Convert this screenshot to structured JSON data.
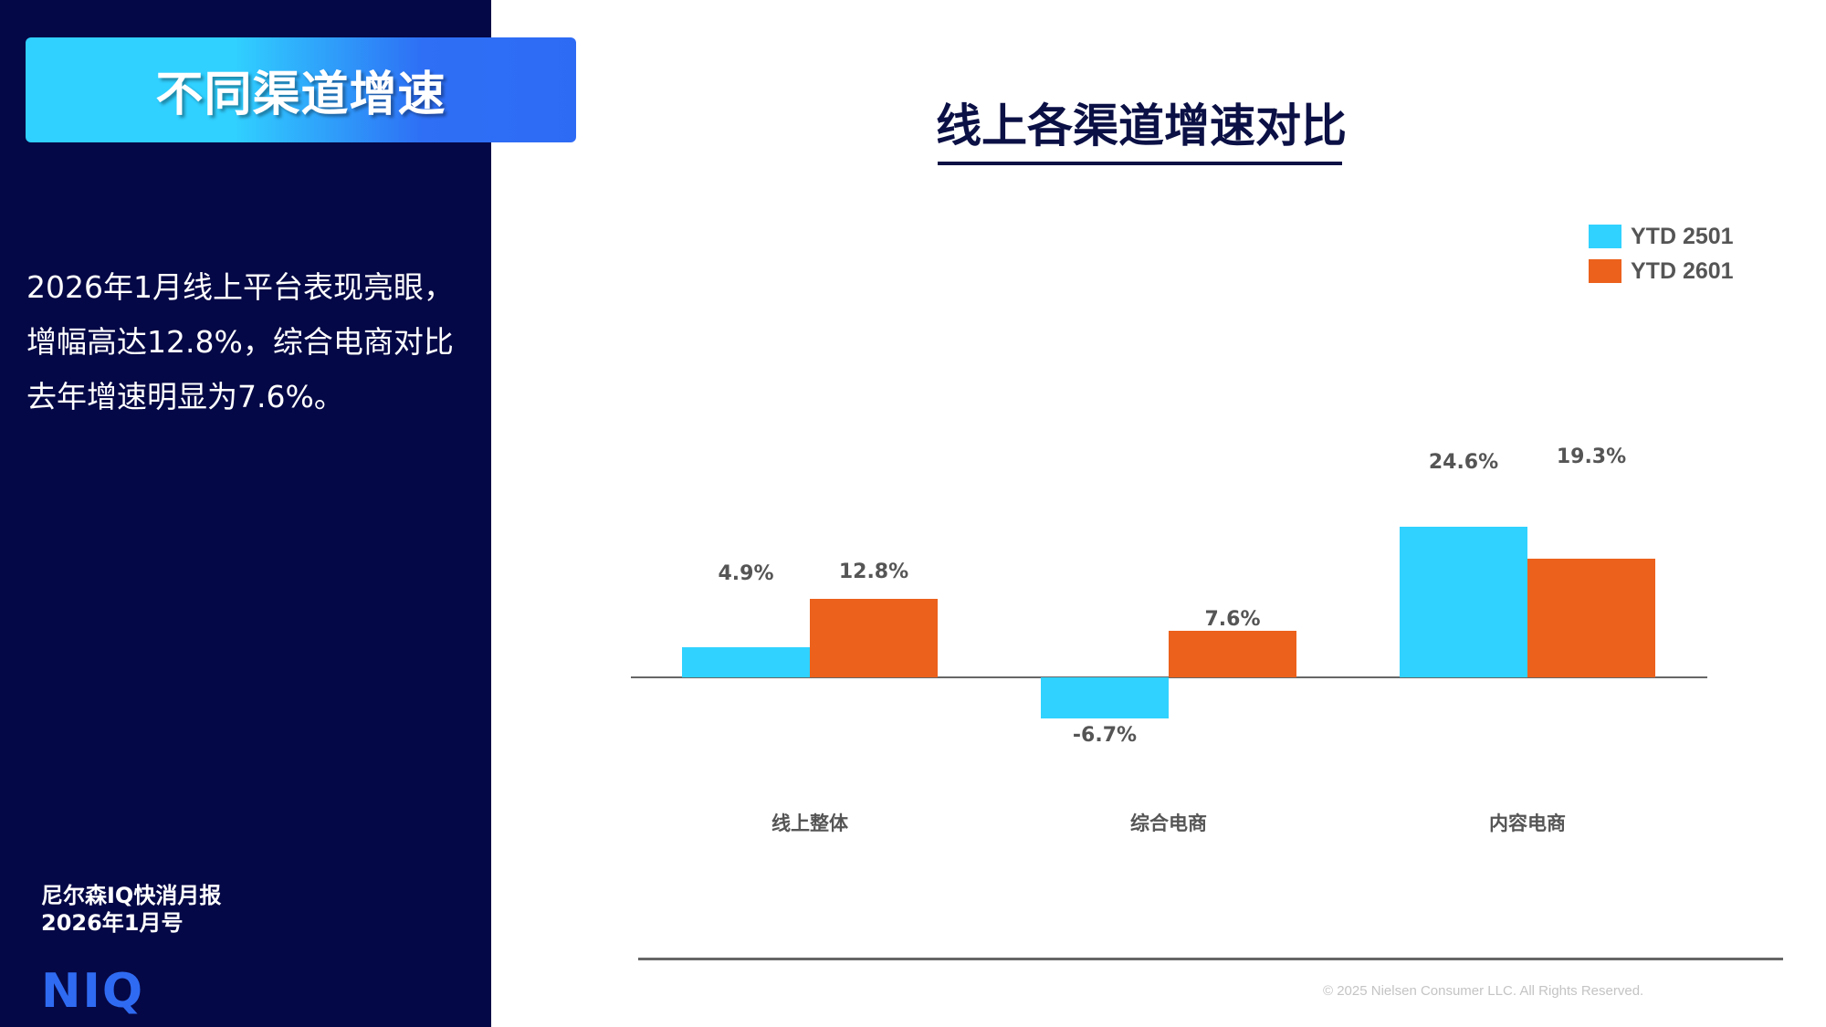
{
  "sidebar": {
    "header": "不同渠道增速",
    "summary_lines": [
      "2026年1月线上平台表现亮眼，",
      "增幅高达12.8%，综合电商对比",
      "去年增速明显为7.6%。"
    ],
    "report_name": "尼尔森IQ快消月报",
    "report_issue": "2026年1月号",
    "logo": "NIQ"
  },
  "colors": {
    "sidebar_bg": "#050846",
    "ytd_2501": "#30d2ff",
    "ytd_2601": "#ec611c",
    "title": "#0b1045",
    "logo": "#2f6bf2"
  },
  "chart_data": {
    "type": "bar",
    "title": "线上各渠道增速对比",
    "categories": [
      "线上整体",
      "综合电商",
      "内容电商"
    ],
    "series": [
      {
        "name": "YTD 2501",
        "values": [
          4.9,
          -6.7,
          24.6
        ],
        "labels": [
          "4.9%",
          "-6.7%",
          "24.6%"
        ]
      },
      {
        "name": "YTD 2601",
        "values": [
          12.8,
          7.6,
          19.3
        ],
        "labels": [
          "12.8%",
          "7.6%",
          "19.3%"
        ]
      }
    ],
    "xlabel": "",
    "ylabel": "",
    "unit": "%",
    "legend_position": "top-right",
    "grid": false,
    "data_labels": true
  },
  "footer": {
    "copyright": "© 2025 Nielsen Consumer LLC. All Rights Reserved."
  }
}
